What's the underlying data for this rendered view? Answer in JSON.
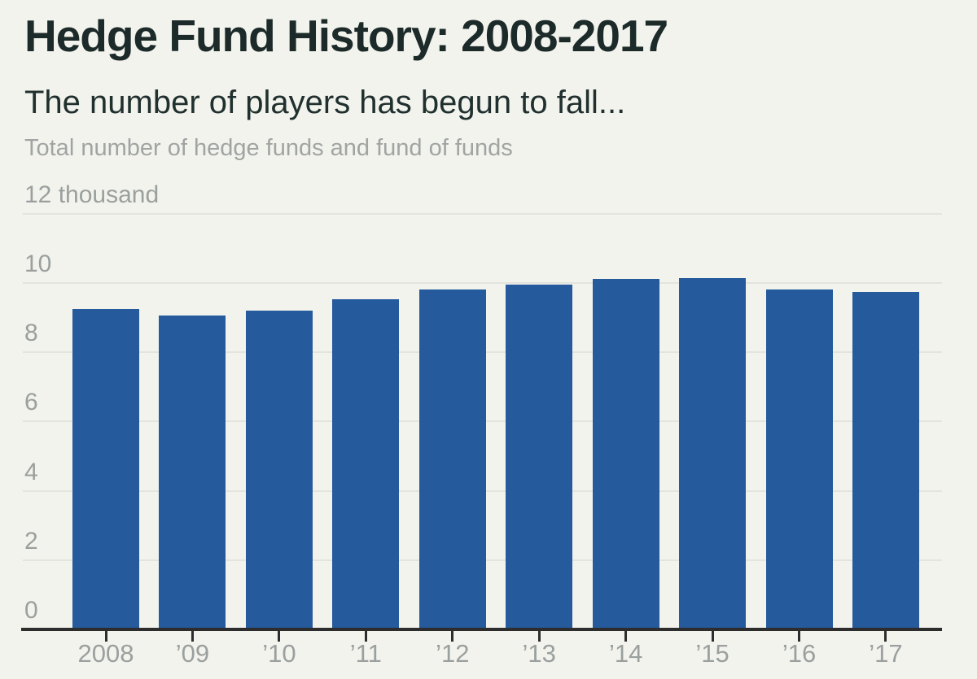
{
  "header": {
    "title": "Hedge Fund History: 2008-2017",
    "subtitle": "The number of players has begun to fall...",
    "description": "Total number of hedge funds and fund of funds"
  },
  "chart_data": {
    "type": "bar",
    "title": "Hedge Fund History: 2008-2017",
    "subtitle": "The number of players has begun to fall...",
    "ylabel": "Total number of hedge funds and fund of funds",
    "unit": "thousand",
    "categories": [
      "2008",
      "’09",
      "’10",
      "’11",
      "’12",
      "’13",
      "’14",
      "’15",
      "’16",
      "’17"
    ],
    "values": [
      9.25,
      9.05,
      9.2,
      9.52,
      9.81,
      9.95,
      10.12,
      10.15,
      9.82,
      9.75
    ],
    "y_ticks": [
      {
        "value": 0,
        "label": "0"
      },
      {
        "value": 2,
        "label": "2"
      },
      {
        "value": 4,
        "label": "4"
      },
      {
        "value": 6,
        "label": "6"
      },
      {
        "value": 8,
        "label": "8"
      },
      {
        "value": 10,
        "label": "10"
      },
      {
        "value": 12,
        "label": "12 thousand"
      }
    ],
    "ylim": [
      0,
      12
    ],
    "grid": true,
    "legend": "none",
    "bar_color": "#255a9c",
    "background_color": "#f3f3ee",
    "gridline_color": "#e4e4de",
    "axis_color": "#2d2d2d",
    "label_color": "#9aa09e"
  }
}
